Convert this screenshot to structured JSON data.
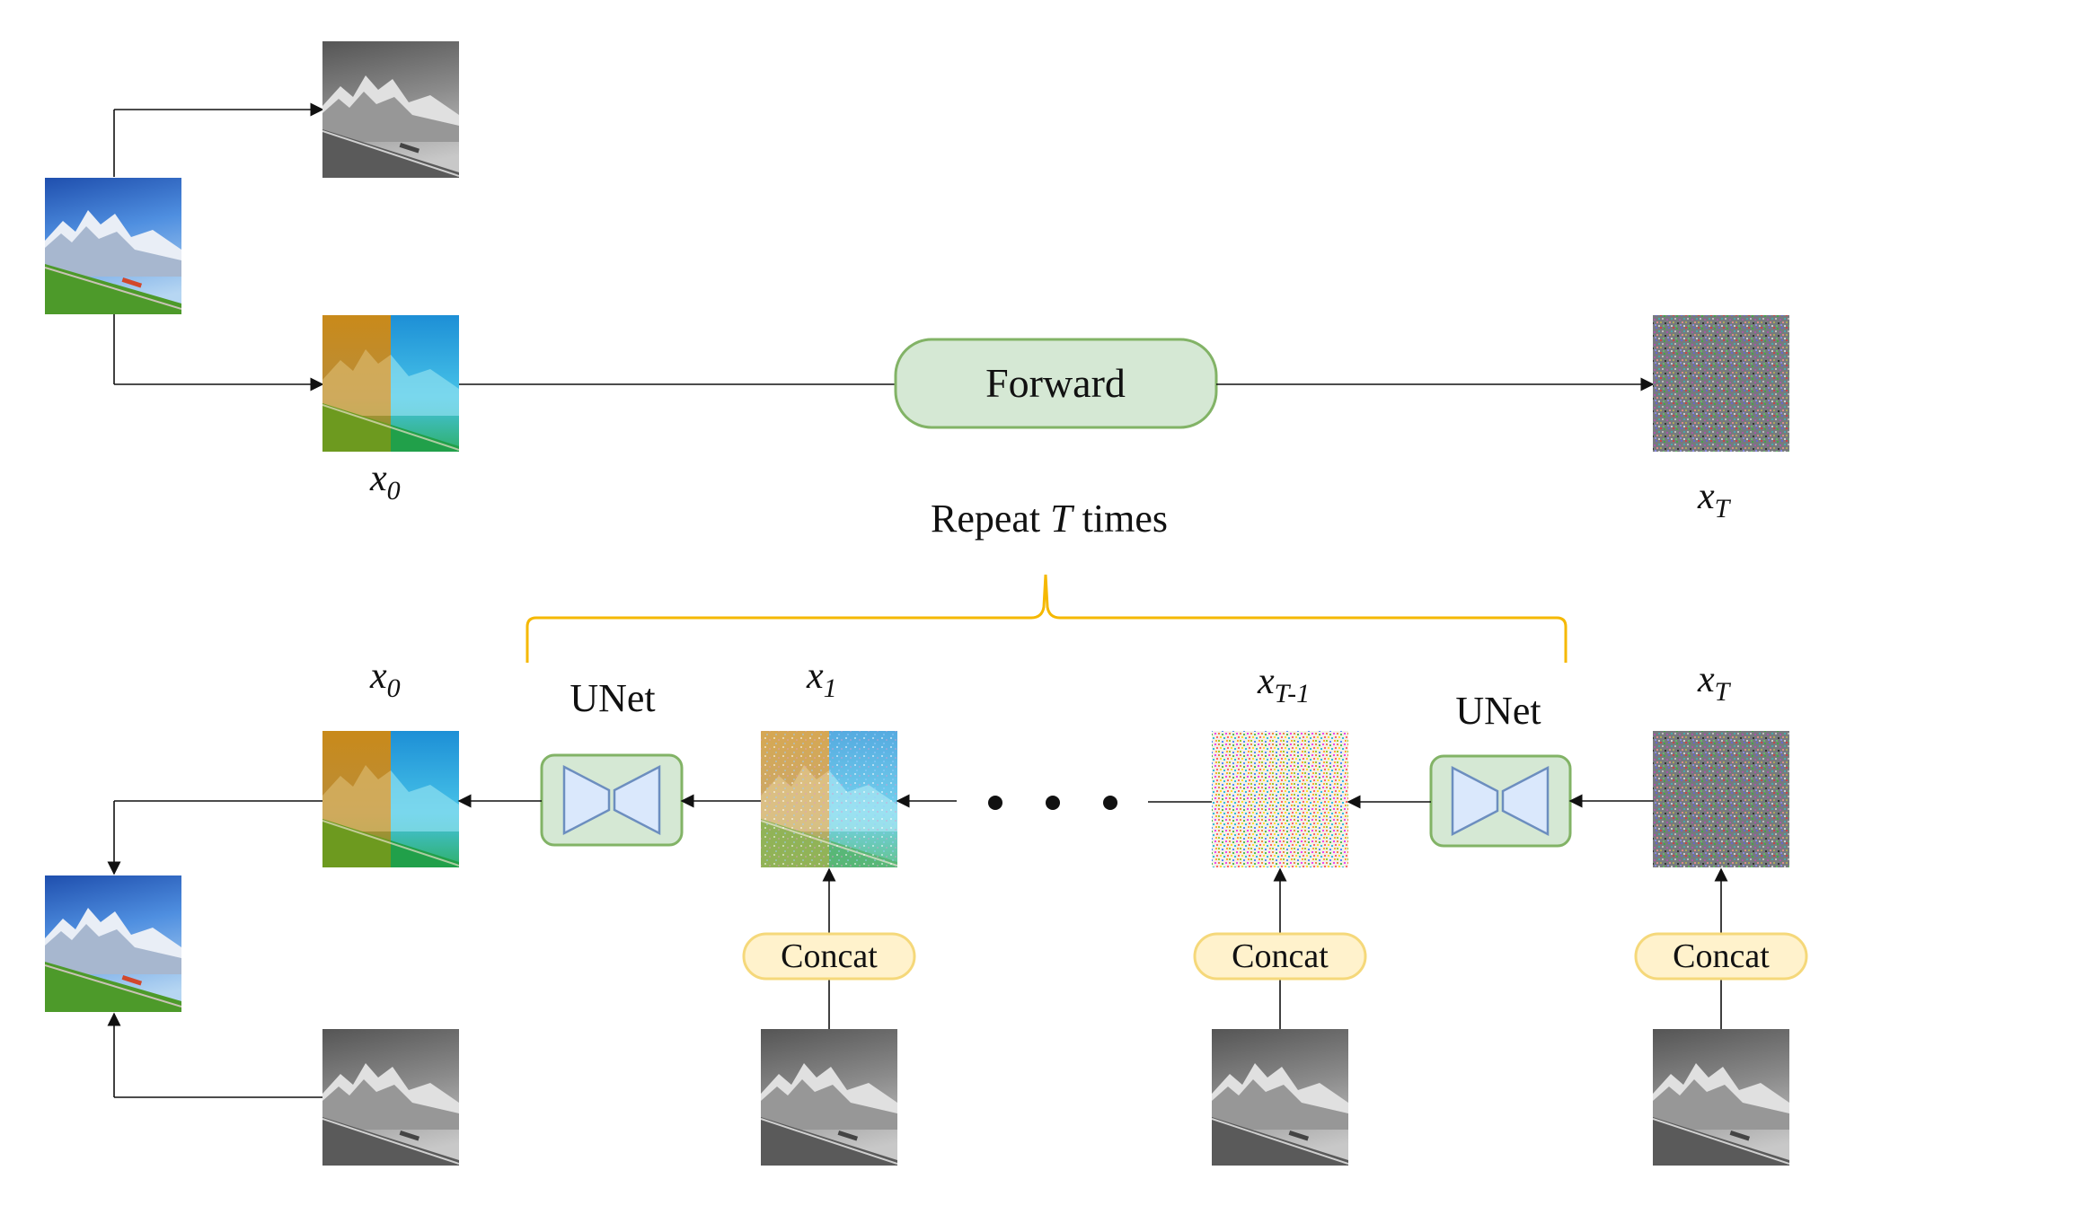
{
  "labels": {
    "forward": "Forward",
    "repeat_prefix": "Repeat ",
    "repeat_var": "T",
    "repeat_suffix": " times",
    "unet_left": "UNet",
    "unet_right": "UNet",
    "concat_1": "Concat",
    "concat_2": "Concat",
    "concat_3": "Concat",
    "x": "x",
    "sub_0": "0",
    "sub_1": "1",
    "sub_T": "T",
    "sub_Tm1": "T-1"
  },
  "images": {
    "color_input": "color-landscape",
    "gray_top": "grayscale-landscape",
    "lab_x0": "chroma-landscape",
    "noise_xT": "gaussian-noise",
    "x1": "partially-noised-chroma",
    "xTm1": "heavily-noised-chroma",
    "gray_cond": "grayscale-landscape",
    "color_output": "color-landscape"
  },
  "colors": {
    "forward_fill": "#d5e8d4",
    "forward_stroke": "#82b366",
    "concat_fill": "#fff2cc",
    "concat_stroke": "#f5d87a",
    "brace": "#f5b800",
    "unet_shape_fill": "#dae8fc",
    "unet_shape_stroke": "#6c8ebf",
    "arrow": "#111111"
  },
  "ellipsis_icon": "three-dots"
}
